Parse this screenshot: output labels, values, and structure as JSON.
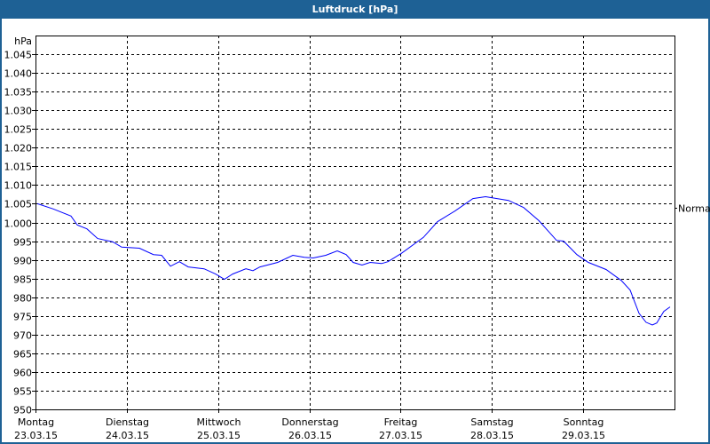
{
  "window": {
    "title": "Luftdruck [hPa]"
  },
  "chart_data": {
    "type": "line",
    "title": "Luftdruck [hPa]",
    "ylabel": "hPa",
    "ylim": [
      950,
      1050
    ],
    "xlim": [
      "2015-03-23 00:00",
      "2015-03-30 00:00"
    ],
    "grid": true,
    "y_ticks": [
      {
        "value": 950,
        "label": "950"
      },
      {
        "value": 955,
        "label": "955"
      },
      {
        "value": 960,
        "label": "960"
      },
      {
        "value": 965,
        "label": "965"
      },
      {
        "value": 970,
        "label": "970"
      },
      {
        "value": 975,
        "label": "975"
      },
      {
        "value": 980,
        "label": "980"
      },
      {
        "value": 985,
        "label": "985"
      },
      {
        "value": 990,
        "label": "990"
      },
      {
        "value": 995,
        "label": "995"
      },
      {
        "value": 1000,
        "label": "1.000"
      },
      {
        "value": 1005,
        "label": "1.005"
      },
      {
        "value": 1010,
        "label": "1.010"
      },
      {
        "value": 1015,
        "label": "1.015"
      },
      {
        "value": 1020,
        "label": "1.020"
      },
      {
        "value": 1025,
        "label": "1.025"
      },
      {
        "value": 1030,
        "label": "1.030"
      },
      {
        "value": 1035,
        "label": "1.035"
      },
      {
        "value": 1040,
        "label": "1.040"
      },
      {
        "value": 1045,
        "label": "1.045"
      }
    ],
    "x_ticks": [
      {
        "value": "2015-03-23 00:00",
        "day": "Montag",
        "date": "23.03.15"
      },
      {
        "value": "2015-03-24 00:00",
        "day": "Dienstag",
        "date": "24.03.15"
      },
      {
        "value": "2015-03-25 00:00",
        "day": "Mittwoch",
        "date": "25.03.15"
      },
      {
        "value": "2015-03-26 00:00",
        "day": "Donnerstag",
        "date": "26.03.15"
      },
      {
        "value": "2015-03-27 00:00",
        "day": "Freitag",
        "date": "27.03.15"
      },
      {
        "value": "2015-03-28 00:00",
        "day": "Samstag",
        "date": "28.03.15"
      },
      {
        "value": "2015-03-29 00:00",
        "day": "Sonntag",
        "date": "29.03.15"
      }
    ],
    "reference_line": {
      "label": "Normal",
      "value": 1004
    },
    "line_color": "#0000ff",
    "series": [
      {
        "points": [
          [
            "2015-03-23 00:30",
            1005.0
          ],
          [
            "2015-03-23 04:40",
            1003.6
          ],
          [
            "2015-03-23 09:20",
            1001.7
          ],
          [
            "2015-03-23 11:00",
            999.3
          ],
          [
            "2015-03-23 13:30",
            998.3
          ],
          [
            "2015-03-23 16:20",
            995.7
          ],
          [
            "2015-03-23 20:20",
            994.8
          ],
          [
            "2015-03-23 22:40",
            993.4
          ],
          [
            "2015-03-24 03:20",
            993.1
          ],
          [
            "2015-03-24 07:00",
            991.4
          ],
          [
            "2015-03-24 09:10",
            991.2
          ],
          [
            "2015-03-24 11:30",
            988.3
          ],
          [
            "2015-03-24 13:50",
            989.5
          ],
          [
            "2015-03-24 16:10",
            988.1
          ],
          [
            "2015-03-24 20:20",
            987.6
          ],
          [
            "2015-03-24 23:20",
            986.2
          ],
          [
            "2015-03-25 01:40",
            984.8
          ],
          [
            "2015-03-25 03:50",
            986.2
          ],
          [
            "2015-03-25 07:20",
            987.6
          ],
          [
            "2015-03-25 09:10",
            987.1
          ],
          [
            "2015-03-25 11:00",
            988.1
          ],
          [
            "2015-03-25 15:40",
            989.3
          ],
          [
            "2015-03-25 19:40",
            991.2
          ],
          [
            "2015-03-25 22:40",
            990.7
          ],
          [
            "2015-03-26 01:00",
            990.5
          ],
          [
            "2015-03-26 04:20",
            991.2
          ],
          [
            "2015-03-26 07:20",
            992.4
          ],
          [
            "2015-03-26 09:40",
            991.4
          ],
          [
            "2015-03-26 11:30",
            989.3
          ],
          [
            "2015-03-26 13:50",
            988.6
          ],
          [
            "2015-03-26 16:00",
            989.3
          ],
          [
            "2015-03-26 19:00",
            989.0
          ],
          [
            "2015-03-26 20:40",
            989.5
          ],
          [
            "2015-03-27 00:10",
            991.7
          ],
          [
            "2015-03-27 06:00",
            996.0
          ],
          [
            "2015-03-27 09:40",
            1000.2
          ],
          [
            "2015-03-27 14:20",
            1003.1
          ],
          [
            "2015-03-27 19:00",
            1006.4
          ],
          [
            "2015-03-27 22:20",
            1006.9
          ],
          [
            "2015-03-28 01:20",
            1006.4
          ],
          [
            "2015-03-28 04:20",
            1005.9
          ],
          [
            "2015-03-28 08:20",
            1004.0
          ],
          [
            "2015-03-28 12:20",
            1000.5
          ],
          [
            "2015-03-28 17:00",
            995.2
          ],
          [
            "2015-03-28 18:50",
            995.0
          ],
          [
            "2015-03-28 22:20",
            991.4
          ],
          [
            "2015-03-29 01:20",
            989.3
          ],
          [
            "2015-03-29 06:00",
            987.4
          ],
          [
            "2015-03-29 10:00",
            984.5
          ],
          [
            "2015-03-29 12:20",
            981.9
          ],
          [
            "2015-03-29 14:40",
            975.7
          ],
          [
            "2015-03-29 16:30",
            973.3
          ],
          [
            "2015-03-29 18:10",
            972.6
          ],
          [
            "2015-03-29 19:20",
            973.1
          ],
          [
            "2015-03-29 21:10",
            976.2
          ],
          [
            "2015-03-29 22:50",
            977.4
          ]
        ]
      }
    ]
  }
}
